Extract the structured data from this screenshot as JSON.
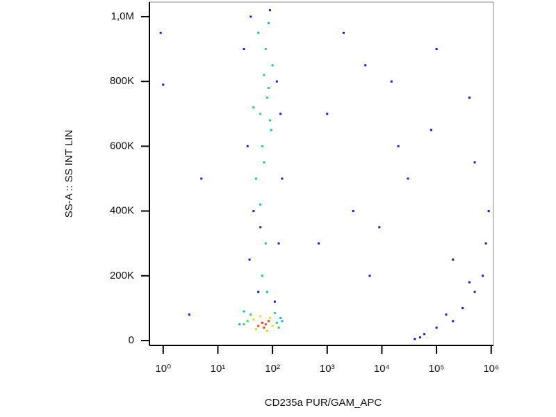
{
  "chart_data": {
    "type": "scatter",
    "x_label": "CD235a PUR/GAM_APC",
    "y_label": "SS-A :: SS INT LIN",
    "x_log_scale": true,
    "xlim": [
      0.56,
      1100000
    ],
    "xticks": [
      {
        "value": 1,
        "label": "10⁰"
      },
      {
        "value": 10,
        "label": "10¹"
      },
      {
        "value": 100,
        "label": "10²"
      },
      {
        "value": 1000,
        "label": "10³"
      },
      {
        "value": 10000,
        "label": "10⁴"
      },
      {
        "value": 100000,
        "label": "10⁵"
      },
      {
        "value": 1000000,
        "label": "10⁶"
      }
    ],
    "ylim": [
      -15000,
      1045000
    ],
    "yticks": [
      0,
      {
        "value": 200000,
        "label": "200K"
      },
      {
        "value": 400000,
        "label": "400K"
      },
      {
        "value": 600000,
        "label": "600K"
      },
      {
        "value": 800000,
        "label": "800K"
      },
      {
        "value": 1000000,
        "label": "1,0M"
      }
    ],
    "grid": false,
    "series": [
      {
        "color": "#1a1ad0",
        "x": [
          30,
          40,
          140,
          35,
          150,
          45,
          130,
          38,
          120,
          55,
          110,
          60,
          90,
          1000,
          5000,
          20000,
          3000,
          100000,
          80000,
          400000,
          700,
          30000,
          2000,
          6000,
          15000,
          500000,
          200000,
          9000,
          40000,
          60000,
          100000,
          200000,
          300000,
          500000,
          700000,
          800000,
          50000,
          150000,
          400000,
          900000,
          1,
          0.9,
          3,
          5
        ],
        "values": [
          900000,
          1000000,
          700000,
          600000,
          500000,
          400000,
          300000,
          250000,
          800000,
          150000,
          120000,
          350000,
          1020000,
          700000,
          850000,
          600000,
          400000,
          900000,
          650000,
          750000,
          300000,
          500000,
          950000,
          200000,
          800000,
          550000,
          250000,
          350000,
          5000,
          20000,
          40000,
          60000,
          100000,
          150000,
          200000,
          300000,
          10000,
          80000,
          180000,
          400000,
          790000,
          950000,
          80000,
          500000
        ]
      },
      {
        "color": "#10b8d8",
        "x": [
          50,
          70,
          95,
          55,
          85,
          60,
          100,
          45,
          75,
          65,
          80,
          25,
          150,
          30,
          140
        ],
        "values": [
          500000,
          550000,
          650000,
          950000,
          980000,
          420000,
          850000,
          720000,
          300000,
          200000,
          150000,
          50000,
          60000,
          90000,
          70000
        ]
      },
      {
        "color": "#30d070",
        "x": [
          35,
          120,
          40,
          110,
          30,
          130,
          60,
          80,
          70,
          90,
          65,
          75,
          85
        ],
        "values": [
          60000,
          55000,
          80000,
          85000,
          50000,
          40000,
          700000,
          750000,
          820000,
          680000,
          600000,
          900000,
          780000
        ]
      },
      {
        "color": "#e8e010",
        "x": [
          45,
          100,
          50,
          90,
          60,
          80
        ],
        "values": [
          65000,
          45000,
          35000,
          70000,
          75000,
          30000
        ]
      },
      {
        "color": "#f04010",
        "x": [
          55,
          65,
          75,
          85,
          70
        ],
        "values": [
          45000,
          55000,
          50000,
          60000,
          40000
        ]
      }
    ]
  }
}
